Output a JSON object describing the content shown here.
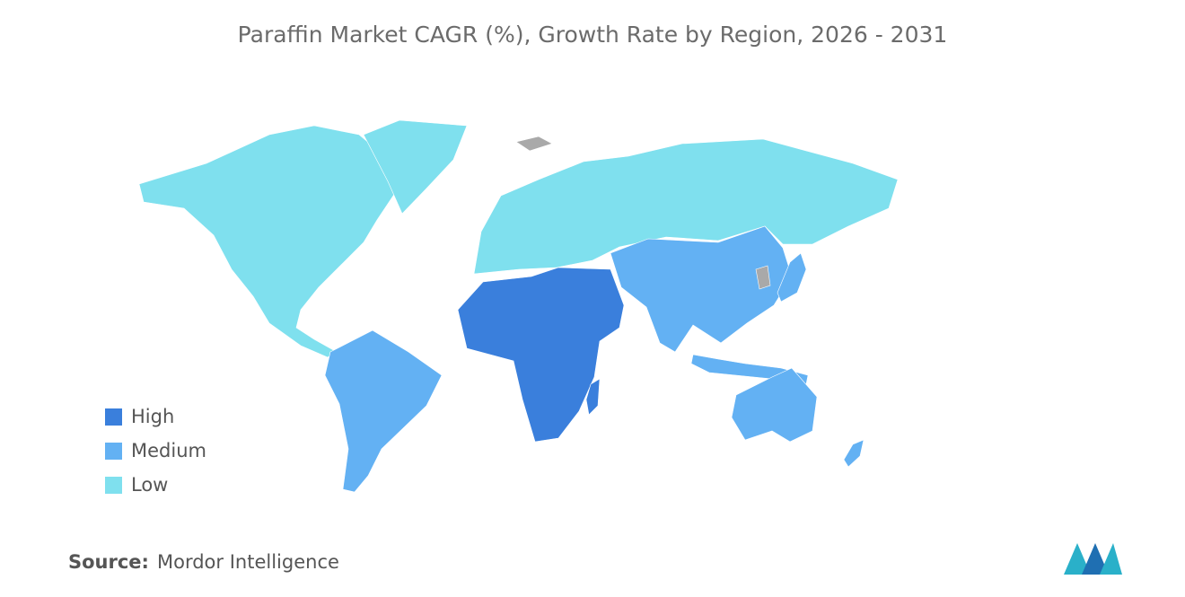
{
  "title": "Paraffin Market CAGR (%), Growth Rate by Region, 2026 - 2031",
  "legend": [
    {
      "label": "High",
      "color": "#3a7fdc"
    },
    {
      "label": "Medium",
      "color": "#63b1f3"
    },
    {
      "label": "Low",
      "color": "#7fe0ee"
    }
  ],
  "no_data_color": "#a9a9a9",
  "source": {
    "label": "Source:",
    "text": "Mordor Intelligence"
  }
}
